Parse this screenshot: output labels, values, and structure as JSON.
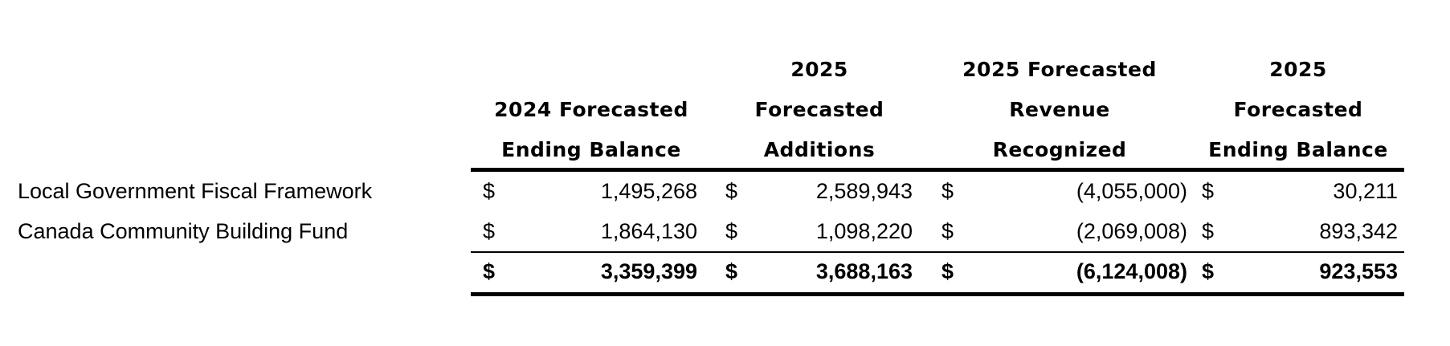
{
  "table": {
    "headers": {
      "col1": [
        "2024 Forecasted",
        "Ending Balance"
      ],
      "col2": [
        "2025",
        "Forecasted",
        "Additions"
      ],
      "col3": [
        "2025 Forecasted",
        "Revenue",
        "Recognized"
      ],
      "col4": [
        "2025",
        "Forecasted",
        "Ending Balance"
      ]
    },
    "currency_symbol": "$",
    "rows": [
      {
        "label": "Local Government Fiscal Framework",
        "values": [
          "1,495,268",
          "2,589,943",
          "(4,055,000)",
          "30,211"
        ]
      },
      {
        "label": "Canada Community Building Fund",
        "values": [
          "1,864,130",
          "1,098,220",
          "(2,069,008)",
          "893,342"
        ]
      }
    ],
    "total": {
      "values": [
        "3,359,399",
        "3,688,163",
        "(6,124,008)",
        "923,553"
      ]
    }
  }
}
